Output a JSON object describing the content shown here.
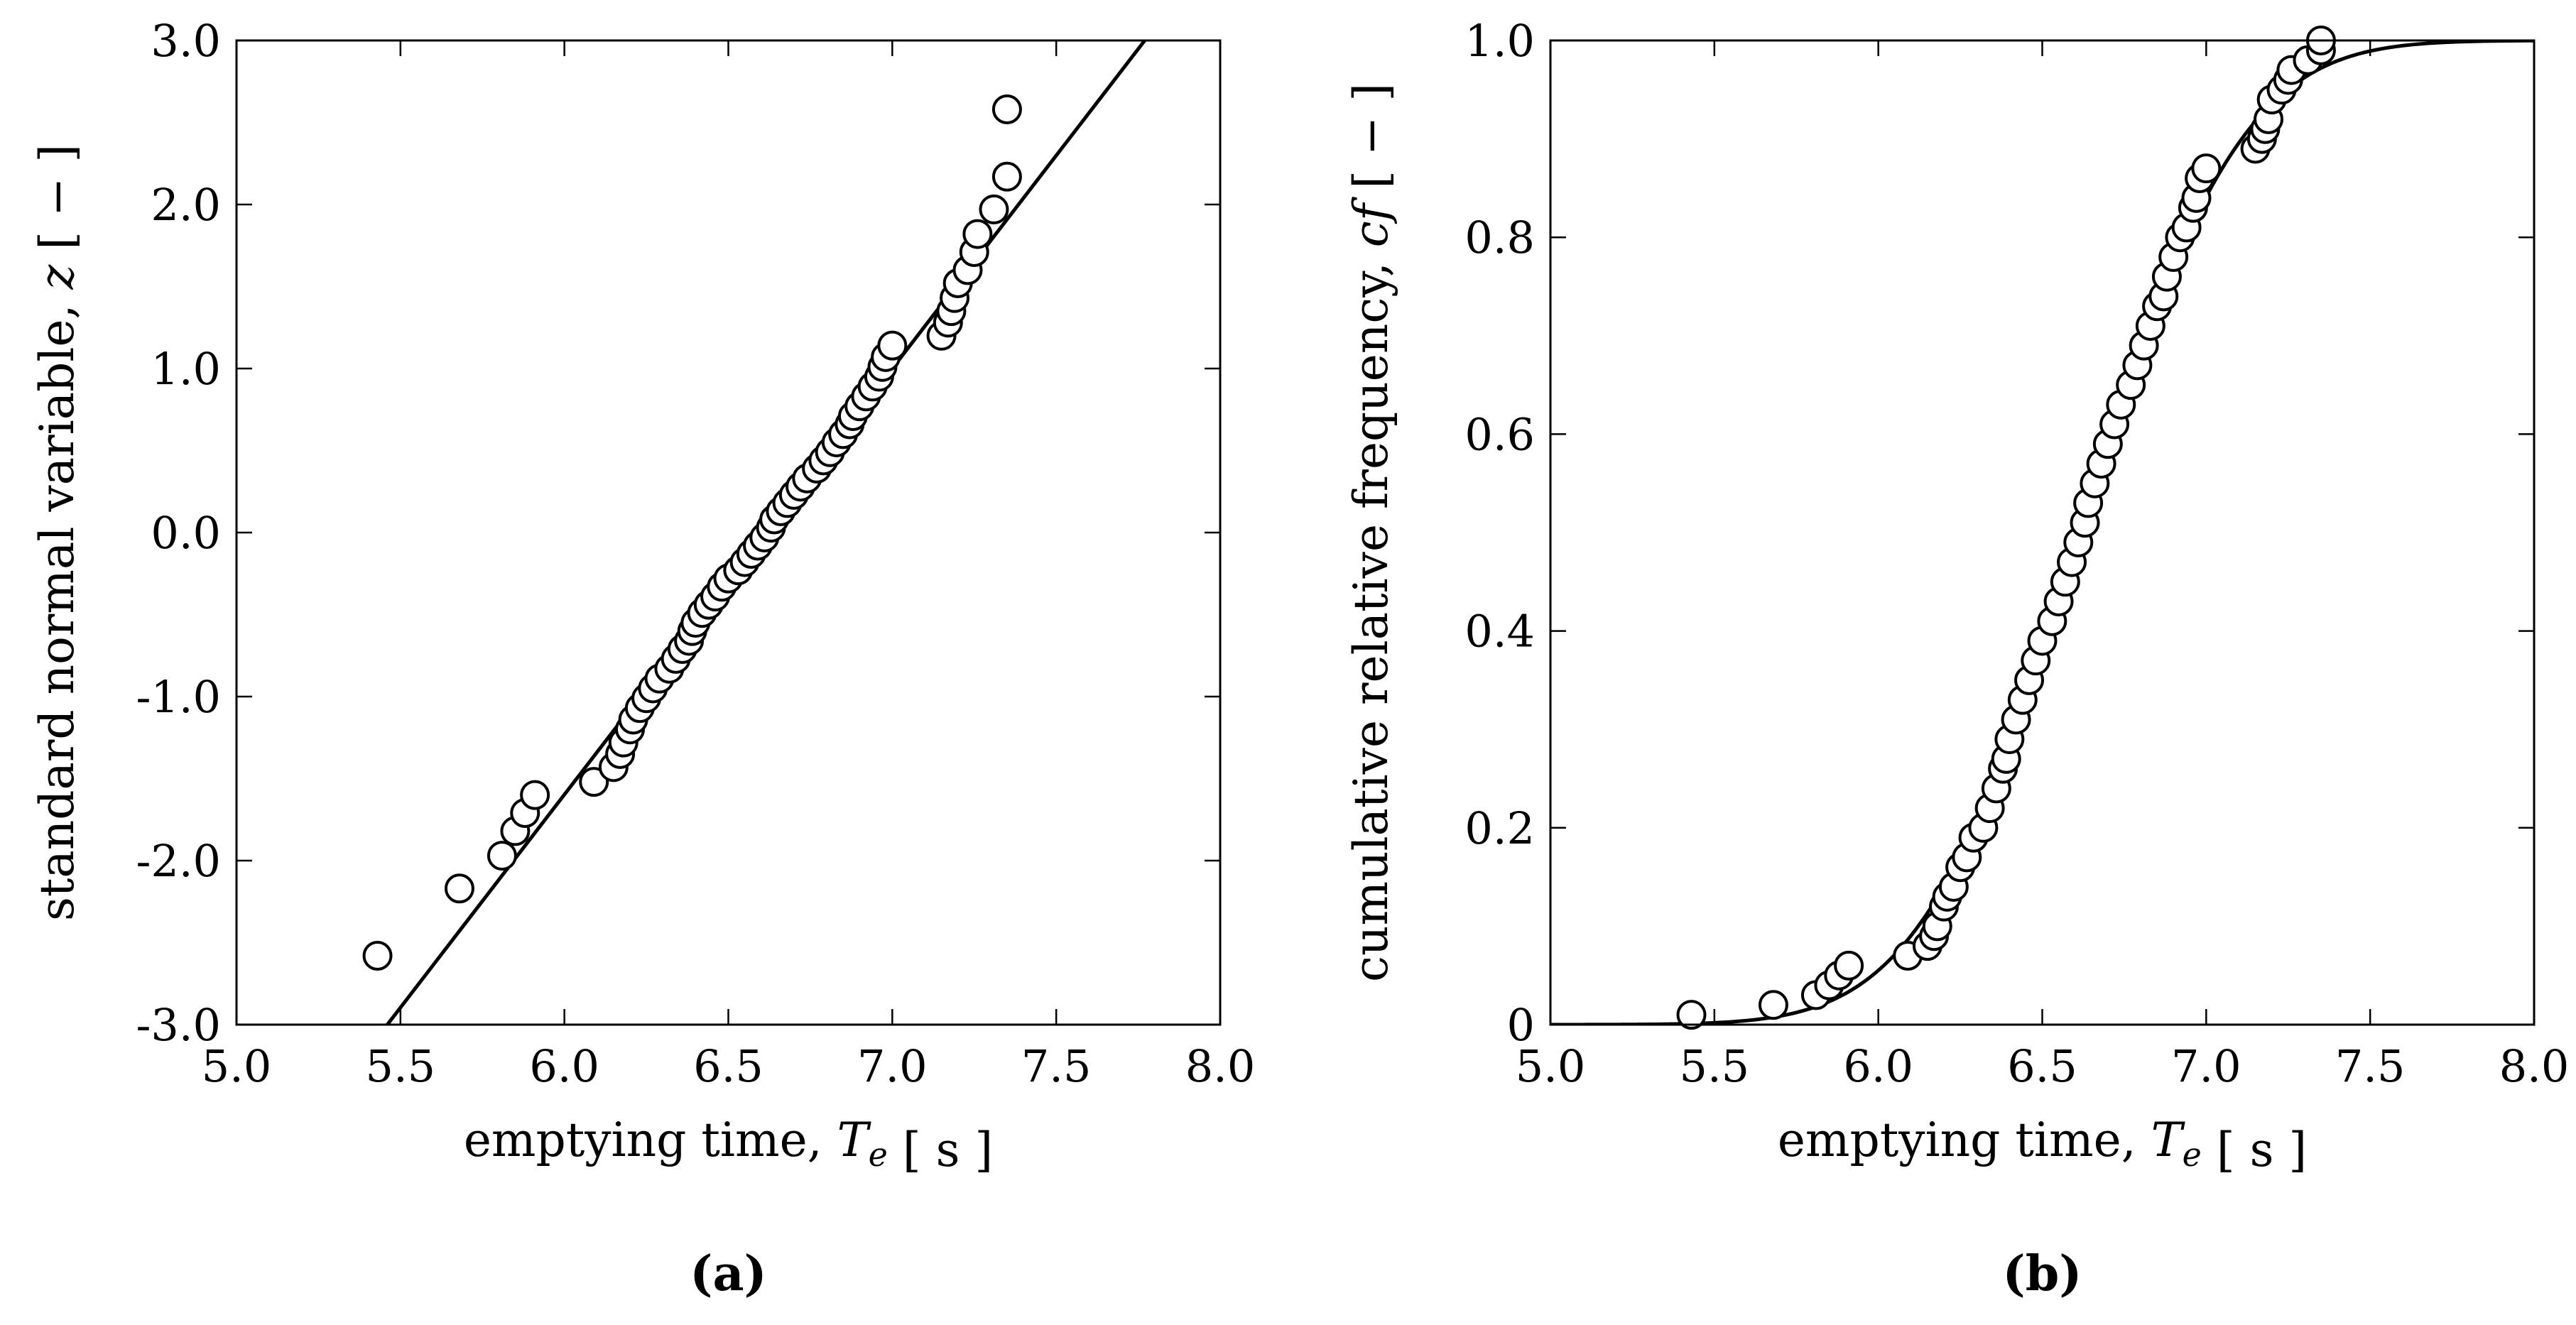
{
  "figure": {
    "panels": [
      {
        "id": "a",
        "label": "(a)"
      },
      {
        "id": "b",
        "label": "(b)"
      }
    ]
  },
  "chart_data": [
    {
      "id": "a",
      "type": "scatter",
      "title": "",
      "panel_label": "(a)",
      "xlabel": "emptying time, T_e [ s ]",
      "ylabel": "standard normal variable, z [ − ]",
      "xlim": [
        5.0,
        8.0
      ],
      "ylim": [
        -3.0,
        3.0
      ],
      "xticks": [
        5.0,
        5.5,
        6.0,
        6.5,
        7.0,
        7.5,
        8.0
      ],
      "xtick_labels": [
        "5.0",
        "5.5",
        "6.0",
        "6.5",
        "7.0",
        "7.5",
        "8.0"
      ],
      "yticks": [
        -3.0,
        -2.0,
        -1.0,
        0.0,
        1.0,
        2.0,
        3.0
      ],
      "ytick_labels": [
        "-3.0",
        "-2.0",
        "-1.0",
        "0.0",
        "1.0",
        "2.0",
        "3.0"
      ],
      "series": [
        {
          "name": "observations",
          "kind": "points",
          "x": [
            5.43,
            5.68,
            5.81,
            5.85,
            5.88,
            5.91,
            6.09,
            6.15,
            6.17,
            6.18,
            6.2,
            6.21,
            6.23,
            6.25,
            6.27,
            6.29,
            6.32,
            6.34,
            6.36,
            6.38,
            6.39,
            6.4,
            6.42,
            6.44,
            6.46,
            6.48,
            6.5,
            6.53,
            6.55,
            6.57,
            6.59,
            6.61,
            6.63,
            6.64,
            6.66,
            6.68,
            6.7,
            6.72,
            6.74,
            6.77,
            6.79,
            6.81,
            6.83,
            6.85,
            6.87,
            6.88,
            6.9,
            6.92,
            6.94,
            6.96,
            6.97,
            6.98,
            7.0,
            7.15,
            7.17,
            7.18,
            7.19,
            7.2,
            7.23,
            7.25,
            7.26,
            7.31,
            7.35
          ],
          "y": [
            -2.58,
            -2.17,
            -1.97,
            -1.82,
            -1.71,
            -1.6,
            -1.52,
            -1.43,
            -1.35,
            -1.28,
            -1.2,
            -1.14,
            -1.07,
            -1.01,
            -0.95,
            -0.89,
            -0.83,
            -0.77,
            -0.71,
            -0.66,
            -0.6,
            -0.55,
            -0.49,
            -0.44,
            -0.39,
            -0.33,
            -0.28,
            -0.23,
            -0.18,
            -0.13,
            -0.08,
            -0.03,
            0.03,
            0.08,
            0.13,
            0.18,
            0.23,
            0.28,
            0.33,
            0.39,
            0.44,
            0.49,
            0.55,
            0.6,
            0.66,
            0.71,
            0.77,
            0.83,
            0.89,
            0.95,
            1.01,
            1.07,
            1.14,
            1.2,
            1.28,
            1.35,
            1.43,
            1.52,
            1.6,
            1.71,
            1.82,
            1.97,
            2.17
          ]
        },
        {
          "name": "extra-top",
          "kind": "points",
          "x": [
            7.35
          ],
          "y": [
            2.58
          ]
        },
        {
          "name": "normal fit",
          "kind": "line",
          "x": [
            5.46,
            7.77
          ],
          "y": [
            -3.0,
            3.0
          ]
        }
      ]
    },
    {
      "id": "b",
      "type": "scatter",
      "title": "",
      "panel_label": "(b)",
      "xlabel": "emptying time, T_e [ s ]",
      "ylabel": "cumulative relative frequency, cf [ − ]",
      "xlim": [
        5.0,
        8.0
      ],
      "ylim": [
        0.0,
        1.0
      ],
      "xticks": [
        5.0,
        5.5,
        6.0,
        6.5,
        7.0,
        7.5,
        8.0
      ],
      "xtick_labels": [
        "5.0",
        "5.5",
        "6.0",
        "6.5",
        "7.0",
        "7.5",
        "8.0"
      ],
      "yticks": [
        0.0,
        0.2,
        0.4,
        0.6,
        0.8,
        1.0
      ],
      "ytick_labels": [
        "0",
        "0.2",
        "0.4",
        "0.6",
        "0.8",
        "1.0"
      ],
      "series": [
        {
          "name": "observations",
          "kind": "points",
          "x": [
            5.43,
            5.68,
            5.81,
            5.85,
            5.88,
            5.91,
            6.09,
            6.15,
            6.17,
            6.18,
            6.2,
            6.21,
            6.23,
            6.25,
            6.27,
            6.29,
            6.32,
            6.34,
            6.36,
            6.38,
            6.39,
            6.4,
            6.42,
            6.44,
            6.46,
            6.48,
            6.5,
            6.53,
            6.55,
            6.57,
            6.59,
            6.61,
            6.63,
            6.64,
            6.66,
            6.68,
            6.7,
            6.72,
            6.74,
            6.77,
            6.79,
            6.81,
            6.83,
            6.85,
            6.87,
            6.88,
            6.9,
            6.92,
            6.94,
            6.96,
            6.97,
            6.98,
            7.0,
            7.15,
            7.17,
            7.18,
            7.19,
            7.2,
            7.23,
            7.25,
            7.26,
            7.31,
            7.35
          ],
          "y": [
            0.01,
            0.02,
            0.03,
            0.04,
            0.05,
            0.06,
            0.07,
            0.08,
            0.09,
            0.1,
            0.12,
            0.13,
            0.14,
            0.16,
            0.17,
            0.19,
            0.2,
            0.22,
            0.24,
            0.26,
            0.27,
            0.29,
            0.31,
            0.33,
            0.35,
            0.37,
            0.39,
            0.41,
            0.43,
            0.45,
            0.47,
            0.49,
            0.51,
            0.53,
            0.55,
            0.57,
            0.59,
            0.61,
            0.63,
            0.65,
            0.67,
            0.69,
            0.71,
            0.73,
            0.74,
            0.76,
            0.78,
            0.8,
            0.81,
            0.83,
            0.84,
            0.86,
            0.87,
            0.89,
            0.9,
            0.91,
            0.92,
            0.94,
            0.95,
            0.96,
            0.97,
            0.98,
            0.99
          ]
        },
        {
          "name": "extra-top",
          "kind": "points",
          "x": [
            7.35
          ],
          "y": [
            1.0
          ]
        },
        {
          "name": "normal CDF",
          "kind": "line",
          "distribution": {
            "mean": 6.615,
            "sd": 0.385
          },
          "x_range": [
            5.0,
            8.0
          ]
        }
      ]
    }
  ]
}
